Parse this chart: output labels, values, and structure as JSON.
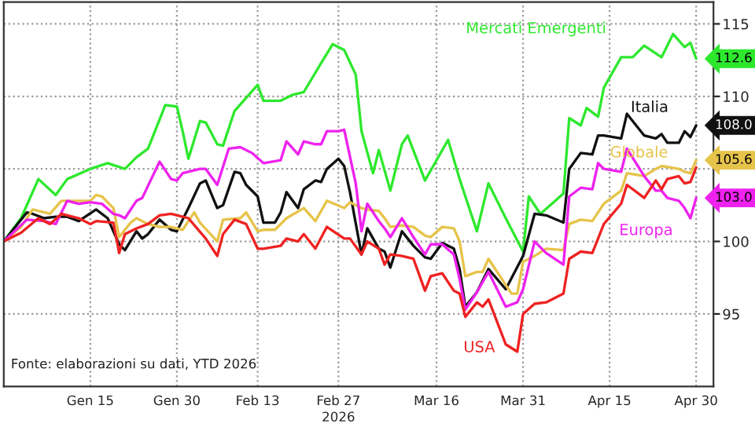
{
  "chart_data": {
    "type": "line",
    "xlabel": "2026",
    "annotations": [
      "Fonte: elaborazioni su dati, YTD 2026",
      {
        "text": "112.6",
        "x": "2026-04-30",
        "y": 112.6
      },
      {
        "text": "108.0",
        "x": "2026-04-30",
        "y": 108.0
      },
      {
        "text": "105.6",
        "x": "2026-04-30",
        "y": 105.6
      },
      {
        "text": "103.0",
        "x": "2026-04-30",
        "y": 103.0
      }
    ],
    "xlim": [
      "2025-12-31",
      "2026-05-03"
    ],
    "xticks": [
      {
        "value": "2026-01-15",
        "label": "Gen 15"
      },
      {
        "value": "2026-01-30",
        "label": "Gen 30"
      },
      {
        "value": "2026-02-13",
        "label": "Feb 13"
      },
      {
        "value": "2026-02-27",
        "label": "Feb 27"
      },
      {
        "value": "2026-03-16",
        "label": "Mar 16"
      },
      {
        "value": "2026-03-31",
        "label": "Mar 31"
      },
      {
        "value": "2026-04-15",
        "label": "Apr 15"
      },
      {
        "value": "2026-04-30",
        "label": "Apr 30"
      }
    ],
    "ylim": [
      90,
      116.5
    ],
    "yticks": [
      95,
      100,
      {
        "value": 105,
        "label": null
      },
      110,
      115
    ],
    "grid": true,
    "legend": false,
    "series": [
      {
        "name": "Mercati Emergenti",
        "color": "#2ee82e",
        "x": [
          "2025-12-31",
          "2026-01-03",
          "2026-01-06",
          "2026-01-09",
          "2026-01-11",
          "2026-01-15",
          "2026-01-18",
          "2026-01-21",
          "2026-01-23",
          "2026-01-25",
          "2026-01-28",
          "2026-01-30",
          "2026-01-31",
          "2026-02-01",
          "2026-02-03",
          "2026-02-04",
          "2026-02-06",
          "2026-02-07",
          "2026-02-09",
          "2026-02-13",
          "2026-02-14",
          "2026-02-17",
          "2026-02-19",
          "2026-02-21",
          "2026-02-24",
          "2026-02-26",
          "2026-02-28",
          "2026-03-02",
          "2026-03-03",
          "2026-03-05",
          "2026-03-06",
          "2026-03-08",
          "2026-03-10",
          "2026-03-11",
          "2026-03-14",
          "2026-03-18",
          "2026-03-20",
          "2026-03-23",
          "2026-03-25",
          "2026-03-28",
          "2026-03-31",
          "2026-04-01",
          "2026-04-03",
          "2026-04-07",
          "2026-04-08",
          "2026-04-10",
          "2026-04-11",
          "2026-04-13",
          "2026-04-14",
          "2026-04-17",
          "2026-04-19",
          "2026-04-21",
          "2026-04-24",
          "2026-04-26",
          "2026-04-28",
          "2026-04-29",
          "2026-04-30"
        ],
        "values": [
          100.0,
          101.6,
          104.3,
          103.2,
          104.3,
          105.0,
          105.4,
          105.0,
          105.8,
          106.4,
          109.4,
          109.3,
          107.6,
          105.7,
          108.3,
          108.2,
          106.7,
          106.6,
          109.0,
          110.8,
          109.7,
          109.7,
          110.1,
          110.3,
          112.3,
          113.6,
          113.2,
          111.5,
          107.6,
          104.7,
          106.3,
          103.5,
          106.7,
          107.3,
          104.2,
          107.0,
          104.3,
          100.7,
          104.0,
          101.6,
          99.3,
          103.1,
          101.9,
          103.3,
          108.5,
          108.0,
          109.2,
          108.6,
          110.6,
          112.7,
          112.7,
          113.5,
          112.7,
          114.3,
          113.4,
          113.7,
          112.6
        ]
      },
      {
        "name": "Italia",
        "color": "#111111",
        "x": [
          "2025-12-31",
          "2026-01-04",
          "2026-01-05",
          "2026-01-07",
          "2026-01-09",
          "2026-01-11",
          "2026-01-13",
          "2026-01-16",
          "2026-01-18",
          "2026-01-20",
          "2026-01-21",
          "2026-01-23",
          "2026-01-24",
          "2026-01-25",
          "2026-01-27",
          "2026-01-29",
          "2026-01-30",
          "2026-02-01",
          "2026-02-03",
          "2026-02-04",
          "2026-02-06",
          "2026-02-07",
          "2026-02-09",
          "2026-02-10",
          "2026-02-11",
          "2026-02-13",
          "2026-02-14",
          "2026-02-16",
          "2026-02-17",
          "2026-02-18",
          "2026-02-20",
          "2026-02-21",
          "2026-02-23",
          "2026-02-24",
          "2026-02-25",
          "2026-02-27",
          "2026-02-28",
          "2026-03-01",
          "2026-03-03",
          "2026-03-04",
          "2026-03-06",
          "2026-03-07",
          "2026-03-08",
          "2026-03-10",
          "2026-03-12",
          "2026-03-14",
          "2026-03-15",
          "2026-03-17",
          "2026-03-19",
          "2026-03-20",
          "2026-03-21",
          "2026-03-23",
          "2026-03-25",
          "2026-03-28",
          "2026-03-31",
          "2026-04-02",
          "2026-04-04",
          "2026-04-07",
          "2026-04-08",
          "2026-04-10",
          "2026-04-12",
          "2026-04-13",
          "2026-04-14",
          "2026-04-17",
          "2026-04-18",
          "2026-04-21",
          "2026-04-23",
          "2026-04-24",
          "2026-04-25",
          "2026-04-27",
          "2026-04-28",
          "2026-04-29",
          "2026-04-30"
        ],
        "values": [
          100.0,
          102.0,
          101.9,
          101.6,
          101.7,
          101.7,
          101.4,
          102.2,
          101.6,
          99.8,
          99.4,
          100.7,
          100.2,
          100.5,
          101.5,
          100.8,
          100.7,
          102.3,
          104.0,
          104.2,
          102.3,
          102.5,
          104.8,
          104.7,
          103.9,
          103.1,
          101.3,
          101.3,
          102.0,
          103.4,
          102.3,
          103.6,
          104.2,
          104.1,
          105.0,
          105.7,
          105.2,
          103.4,
          99.1,
          100.9,
          99.5,
          99.3,
          98.2,
          100.7,
          99.7,
          98.9,
          98.8,
          99.9,
          99.5,
          98.1,
          95.5,
          96.5,
          98.1,
          96.7,
          99.0,
          101.9,
          101.8,
          101.3,
          105.0,
          106.1,
          106.0,
          107.3,
          107.3,
          107.1,
          108.8,
          107.3,
          107.1,
          107.4,
          106.8,
          106.8,
          107.6,
          107.2,
          108.0
        ]
      },
      {
        "name": "Globale",
        "color": "#e6c34a",
        "x": [
          "2025-12-31",
          "2026-01-03",
          "2026-01-05",
          "2026-01-08",
          "2026-01-10",
          "2026-01-13",
          "2026-01-15",
          "2026-01-16",
          "2026-01-17",
          "2026-01-19",
          "2026-01-20",
          "2026-01-22",
          "2026-01-23",
          "2026-01-25",
          "2026-01-27",
          "2026-01-29",
          "2026-01-31",
          "2026-02-02",
          "2026-02-03",
          "2026-02-06",
          "2026-02-07",
          "2026-02-10",
          "2026-02-11",
          "2026-02-13",
          "2026-02-14",
          "2026-02-16",
          "2026-02-18",
          "2026-02-21",
          "2026-02-23",
          "2026-02-25",
          "2026-02-28",
          "2026-03-01",
          "2026-03-03",
          "2026-03-04",
          "2026-03-06",
          "2026-03-07",
          "2026-03-08",
          "2026-03-10",
          "2026-03-12",
          "2026-03-14",
          "2026-03-15",
          "2026-03-17",
          "2026-03-19",
          "2026-03-20",
          "2026-03-21",
          "2026-03-23",
          "2026-03-24",
          "2026-03-25",
          "2026-03-27",
          "2026-03-29",
          "2026-03-30",
          "2026-03-31",
          "2026-04-02",
          "2026-04-04",
          "2026-04-07",
          "2026-04-08",
          "2026-04-10",
          "2026-04-12",
          "2026-04-14",
          "2026-04-17",
          "2026-04-18",
          "2026-04-21",
          "2026-04-23",
          "2026-04-24",
          "2026-04-27",
          "2026-04-28",
          "2026-04-29",
          "2026-04-30"
        ],
        "values": [
          100.0,
          101.0,
          102.2,
          101.9,
          102.8,
          102.8,
          102.8,
          103.2,
          103.1,
          102.3,
          100.3,
          101.3,
          101.6,
          101.2,
          101.0,
          101.0,
          100.8,
          102.0,
          101.3,
          100.0,
          101.5,
          101.6,
          102.0,
          100.7,
          100.8,
          100.8,
          101.6,
          102.3,
          101.4,
          102.8,
          102.3,
          102.7,
          102.3,
          102.2,
          102.1,
          101.6,
          101.0,
          101.1,
          101.0,
          100.4,
          100.3,
          101.0,
          100.9,
          100.0,
          97.6,
          97.9,
          97.9,
          98.8,
          97.6,
          96.4,
          96.4,
          98.6,
          99.0,
          99.5,
          99.4,
          101.2,
          101.5,
          101.4,
          102.6,
          103.5,
          104.7,
          104.5,
          105.0,
          105.2,
          105.0,
          104.8,
          104.7,
          105.6
        ]
      },
      {
        "name": "Europa",
        "color": "#ee22ee",
        "x": [
          "2025-12-31",
          "2026-01-04",
          "2026-01-07",
          "2026-01-09",
          "2026-01-11",
          "2026-01-13",
          "2026-01-15",
          "2026-01-17",
          "2026-01-19",
          "2026-01-20",
          "2026-01-21",
          "2026-01-23",
          "2026-01-24",
          "2026-01-27",
          "2026-01-29",
          "2026-01-30",
          "2026-01-31",
          "2026-02-03",
          "2026-02-04",
          "2026-02-06",
          "2026-02-08",
          "2026-02-10",
          "2026-02-12",
          "2026-02-14",
          "2026-02-17",
          "2026-02-18",
          "2026-02-20",
          "2026-02-21",
          "2026-02-23",
          "2026-02-24",
          "2026-02-25",
          "2026-02-27",
          "2026-02-28",
          "2026-03-02",
          "2026-03-03",
          "2026-03-04",
          "2026-03-06",
          "2026-03-07",
          "2026-03-08",
          "2026-03-10",
          "2026-03-12",
          "2026-03-14",
          "2026-03-15",
          "2026-03-17",
          "2026-03-19",
          "2026-03-20",
          "2026-03-21",
          "2026-03-23",
          "2026-03-25",
          "2026-03-28",
          "2026-03-30",
          "2026-03-31",
          "2026-04-02",
          "2026-04-04",
          "2026-04-07",
          "2026-04-08",
          "2026-04-10",
          "2026-04-12",
          "2026-04-13",
          "2026-04-14",
          "2026-04-17",
          "2026-04-18",
          "2026-04-21",
          "2026-04-23",
          "2026-04-24",
          "2026-04-25",
          "2026-04-27",
          "2026-04-28",
          "2026-04-29",
          "2026-04-30"
        ],
        "values": [
          100.0,
          101.5,
          101.4,
          101.2,
          102.8,
          102.6,
          102.7,
          102.6,
          101.9,
          101.8,
          101.6,
          102.8,
          103.0,
          105.5,
          104.3,
          104.2,
          104.7,
          105.0,
          105.0,
          103.9,
          106.4,
          106.5,
          106.1,
          105.4,
          105.6,
          106.9,
          106.0,
          106.9,
          106.7,
          106.7,
          107.6,
          107.6,
          107.7,
          104.0,
          100.7,
          102.6,
          101.4,
          100.9,
          100.3,
          101.6,
          100.3,
          99.1,
          99.8,
          99.8,
          99.1,
          97.4,
          95.3,
          96.5,
          97.9,
          95.5,
          95.8,
          96.7,
          100.0,
          99.2,
          98.4,
          103.1,
          103.7,
          103.6,
          105.4,
          105.0,
          104.8,
          106.4,
          104.5,
          103.5,
          103.5,
          103.0,
          102.8,
          102.3,
          101.6,
          103.0
        ]
      },
      {
        "name": "USA",
        "color": "#ee2222",
        "x": [
          "2025-12-31",
          "2026-01-03",
          "2026-01-06",
          "2026-01-08",
          "2026-01-10",
          "2026-01-11",
          "2026-01-13",
          "2026-01-15",
          "2026-01-16",
          "2026-01-19",
          "2026-01-20",
          "2026-01-21",
          "2026-01-23",
          "2026-01-25",
          "2026-01-27",
          "2026-01-29",
          "2026-01-31",
          "2026-02-01",
          "2026-02-04",
          "2026-02-06",
          "2026-02-07",
          "2026-02-09",
          "2026-02-11",
          "2026-02-13",
          "2026-02-14",
          "2026-02-17",
          "2026-02-18",
          "2026-02-20",
          "2026-02-21",
          "2026-02-23",
          "2026-02-25",
          "2026-02-28",
          "2026-03-01",
          "2026-03-03",
          "2026-03-04",
          "2026-03-06",
          "2026-03-07",
          "2026-03-08",
          "2026-03-10",
          "2026-03-12",
          "2026-03-14",
          "2026-03-15",
          "2026-03-17",
          "2026-03-19",
          "2026-03-20",
          "2026-03-21",
          "2026-03-23",
          "2026-03-24",
          "2026-03-25",
          "2026-03-28",
          "2026-03-30",
          "2026-03-31",
          "2026-04-02",
          "2026-04-04",
          "2026-04-07",
          "2026-04-08",
          "2026-04-10",
          "2026-04-12",
          "2026-04-14",
          "2026-04-17",
          "2026-04-18",
          "2026-04-21",
          "2026-04-23",
          "2026-04-24",
          "2026-04-25",
          "2026-04-27",
          "2026-04-28",
          "2026-04-29",
          "2026-04-30"
        ],
        "values": [
          100.0,
          100.6,
          101.6,
          101.2,
          101.9,
          101.8,
          101.6,
          101.2,
          101.4,
          101.3,
          99.2,
          100.5,
          100.9,
          101.2,
          101.8,
          101.9,
          101.7,
          101.6,
          100.2,
          99.0,
          100.5,
          101.5,
          101.2,
          99.5,
          99.5,
          99.7,
          100.2,
          100.0,
          100.5,
          99.5,
          101.0,
          100.2,
          100.2,
          99.1,
          100.0,
          99.5,
          98.4,
          99.1,
          99.0,
          98.8,
          96.6,
          97.6,
          97.8,
          96.6,
          96.4,
          94.8,
          95.8,
          95.5,
          96.0,
          92.9,
          92.4,
          95.0,
          95.7,
          95.8,
          96.4,
          98.8,
          99.3,
          99.2,
          101.2,
          102.6,
          103.9,
          103.0,
          104.2,
          103.6,
          104.3,
          104.5,
          104.0,
          104.1,
          105.1
        ]
      }
    ]
  }
}
